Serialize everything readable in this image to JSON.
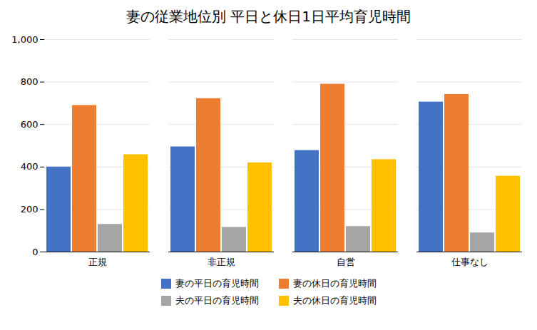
{
  "chart_data": {
    "type": "bar",
    "title": "妻の従業地位別 平日と休日1日平均育児時間",
    "categories": [
      "正規",
      "非正規",
      "自営",
      "仕事なし"
    ],
    "series": [
      {
        "name": "妻の平日の育児時間",
        "color": "#4472C4",
        "values": [
          400,
          495,
          478,
          706
        ]
      },
      {
        "name": "妻の休日の育児時間",
        "color": "#ED7D31",
        "values": [
          690,
          722,
          790,
          742
        ]
      },
      {
        "name": "夫の平日の育児時間",
        "color": "#A5A5A5",
        "values": [
          130,
          116,
          120,
          90
        ]
      },
      {
        "name": "夫の休日の育児時間",
        "color": "#FFC000",
        "values": [
          458,
          420,
          435,
          357
        ]
      }
    ],
    "ylim": [
      0,
      1000
    ],
    "yticks": [
      0,
      200,
      400,
      600,
      800,
      1000
    ],
    "grid": true,
    "legend": "bottom"
  }
}
